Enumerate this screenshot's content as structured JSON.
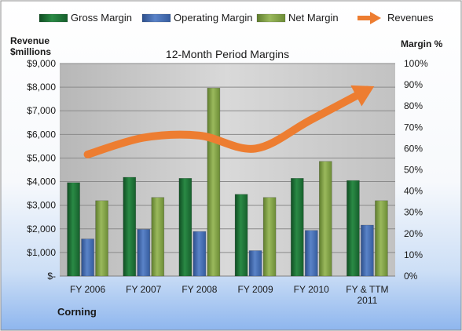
{
  "chart_data": {
    "type": "bar",
    "title": "12-Month Period Margins",
    "company": "Corning",
    "y_left_title": [
      "Revenue",
      "$millions"
    ],
    "y_right_title": "Margin %",
    "categories": [
      [
        "FY 2006"
      ],
      [
        "FY 2007"
      ],
      [
        "FY 2008"
      ],
      [
        "FY 2009"
      ],
      [
        "FY 2010"
      ],
      [
        "FY & TTM",
        "2011"
      ]
    ],
    "y_left_ticks": [
      "$-",
      "$1,000",
      "$2,000",
      "$3,000",
      "$4,000",
      "$5,000",
      "$6,000",
      "$7,000",
      "$8,000",
      "$9,000"
    ],
    "y_right_ticks": [
      "0%",
      "10%",
      "20%",
      "30%",
      "40%",
      "50%",
      "60%",
      "70%",
      "80%",
      "90%",
      "100%"
    ],
    "ylim_left": [
      0,
      9000
    ],
    "ylim_right": [
      0,
      100
    ],
    "series": [
      {
        "name": "Gross Margin",
        "kind": "bar",
        "axis": "right",
        "color": "#1E7A3A",
        "values": [
          44,
          46.5,
          46,
          38.5,
          46,
          45
        ]
      },
      {
        "name": "Operating Margin",
        "kind": "bar",
        "axis": "right",
        "color": "#4A73B8",
        "values": [
          17.5,
          22,
          21,
          12,
          21.5,
          24
        ]
      },
      {
        "name": "Net Margin",
        "kind": "bar",
        "axis": "right",
        "color": "#8AAE4C",
        "values": [
          35.5,
          37,
          88.5,
          37,
          54,
          35.5
        ]
      },
      {
        "name": "Revenues",
        "kind": "line",
        "axis": "left",
        "color": "#ED7D31",
        "values": [
          5150,
          5860,
          5950,
          5400,
          6630,
          7880
        ]
      }
    ],
    "legend_position": "top",
    "grid": true
  }
}
